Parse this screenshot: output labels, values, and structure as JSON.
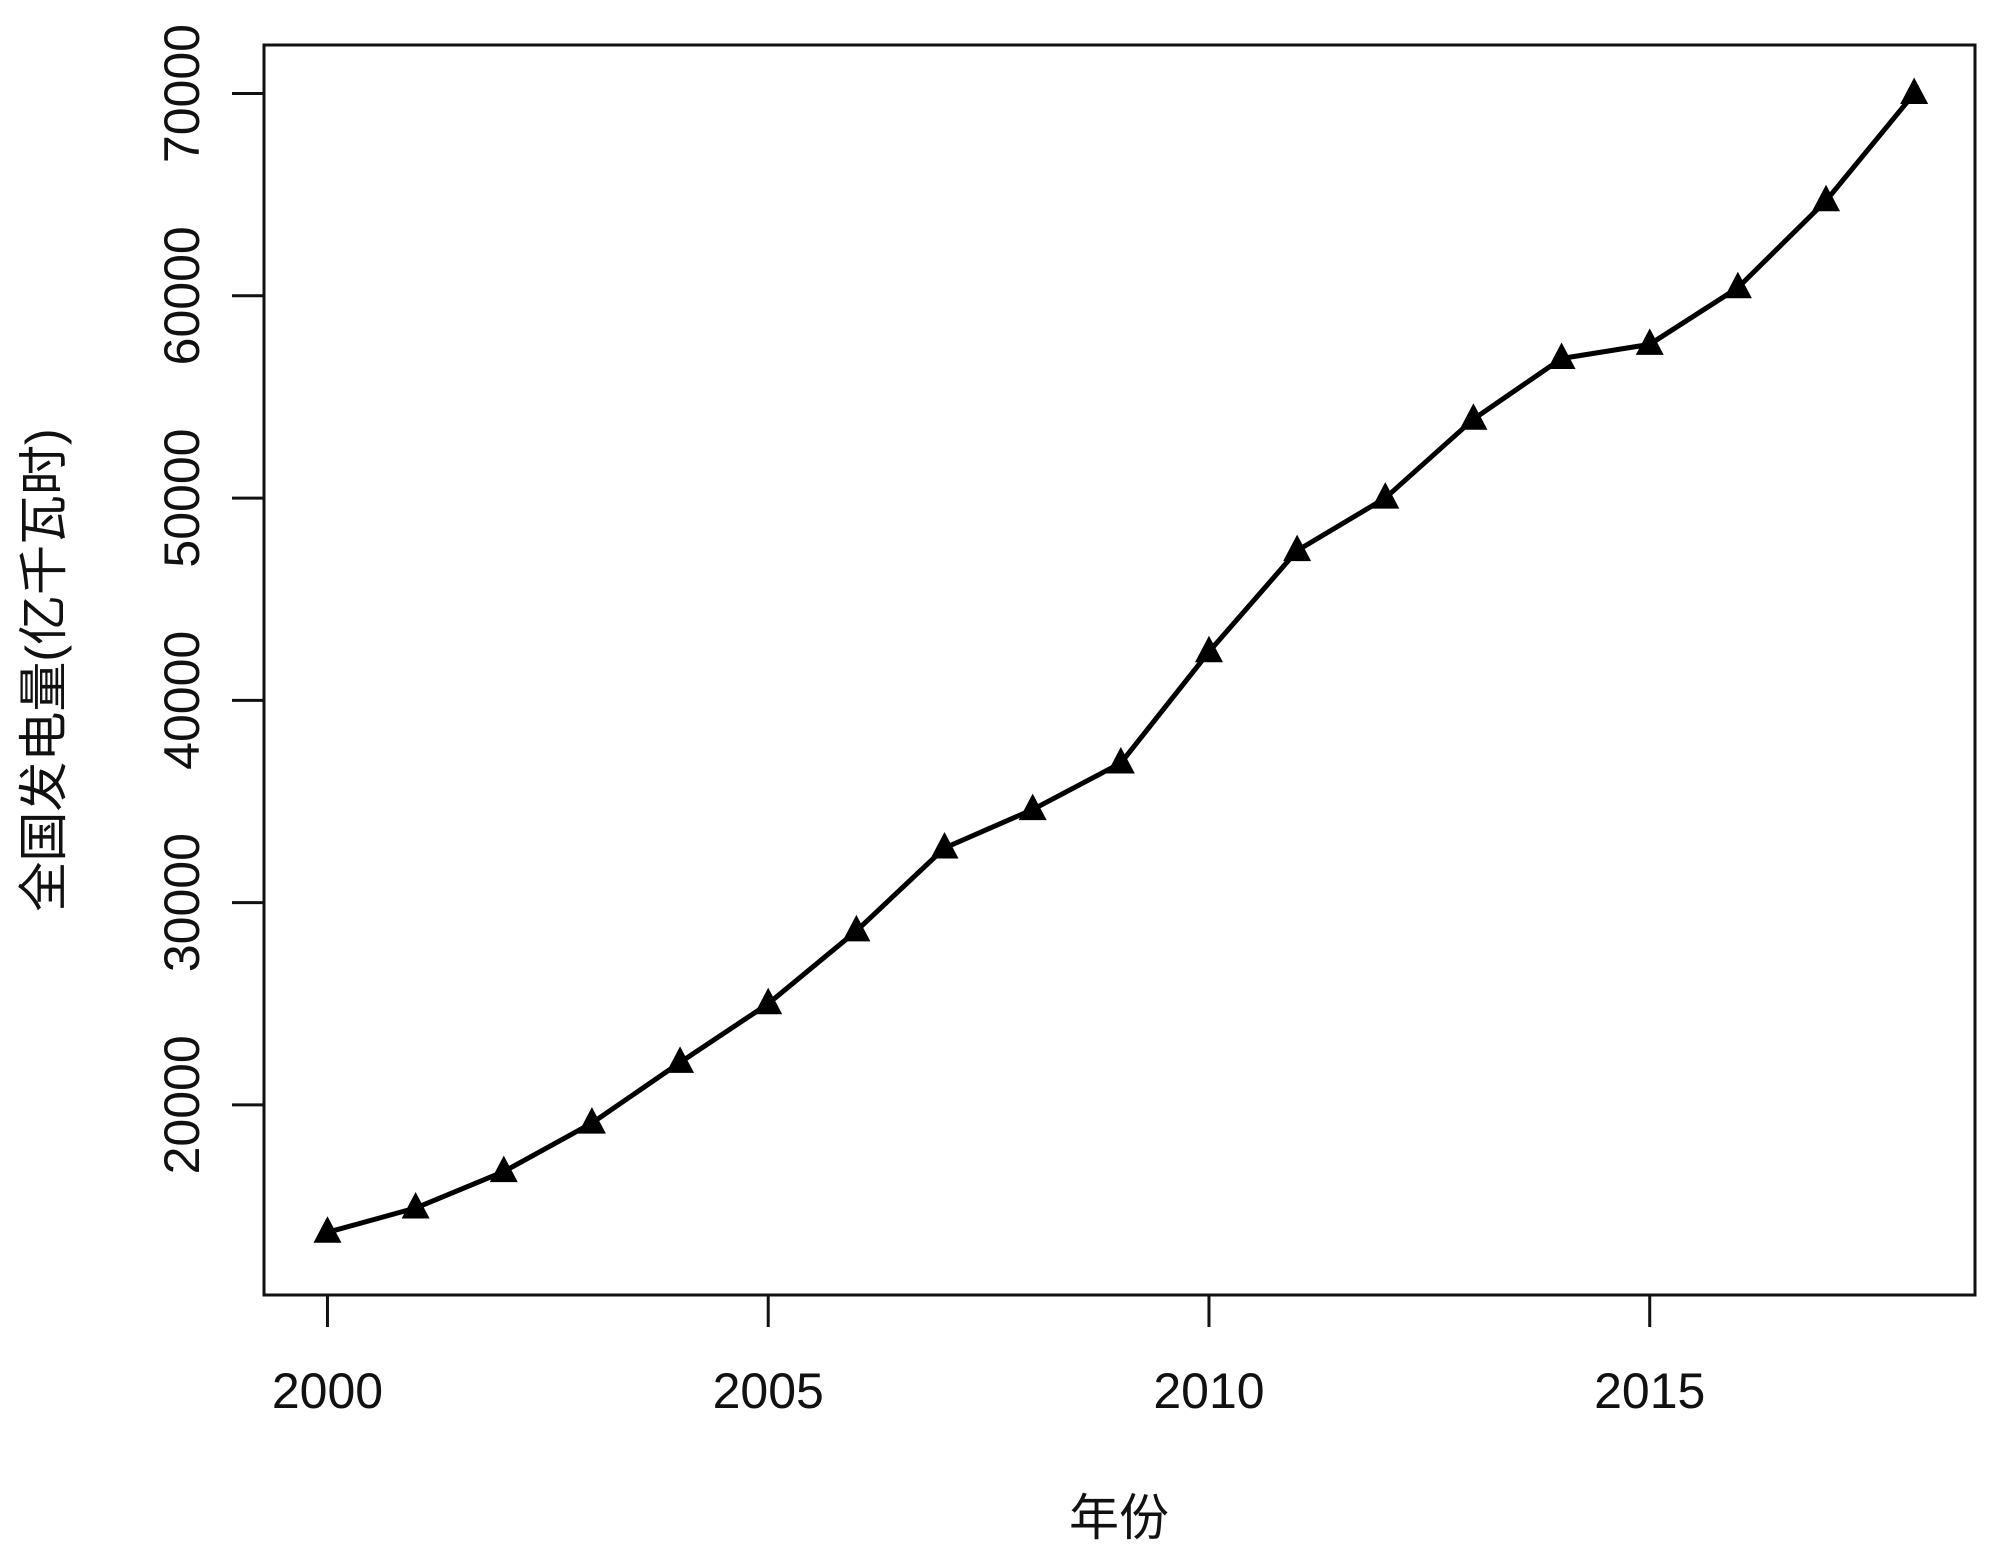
{
  "chart_data": {
    "type": "line",
    "xlabel": "年份",
    "ylabel": "全国发电量(亿千瓦时)",
    "x": [
      2000,
      2001,
      2002,
      2003,
      2004,
      2005,
      2006,
      2007,
      2008,
      2009,
      2010,
      2011,
      2012,
      2013,
      2014,
      2015,
      2016,
      2017,
      2018
    ],
    "series": [
      {
        "color": "#000000",
        "marker": "triangle",
        "values": [
          13700,
          14900,
          16700,
          19100,
          22100,
          25000,
          28600,
          32700,
          34600,
          36900,
          42400,
          47400,
          50000,
          53900,
          56900,
          57600,
          60400,
          64700,
          70000
        ]
      }
    ],
    "xlim": [
      1999.28,
      2018.69
    ],
    "xticks": [
      2000,
      2005,
      2010,
      2015
    ],
    "ylim": [
      10600,
      72400
    ],
    "yticks": [
      20000,
      30000,
      40000,
      50000,
      60000,
      70000
    ],
    "grid": false
  }
}
